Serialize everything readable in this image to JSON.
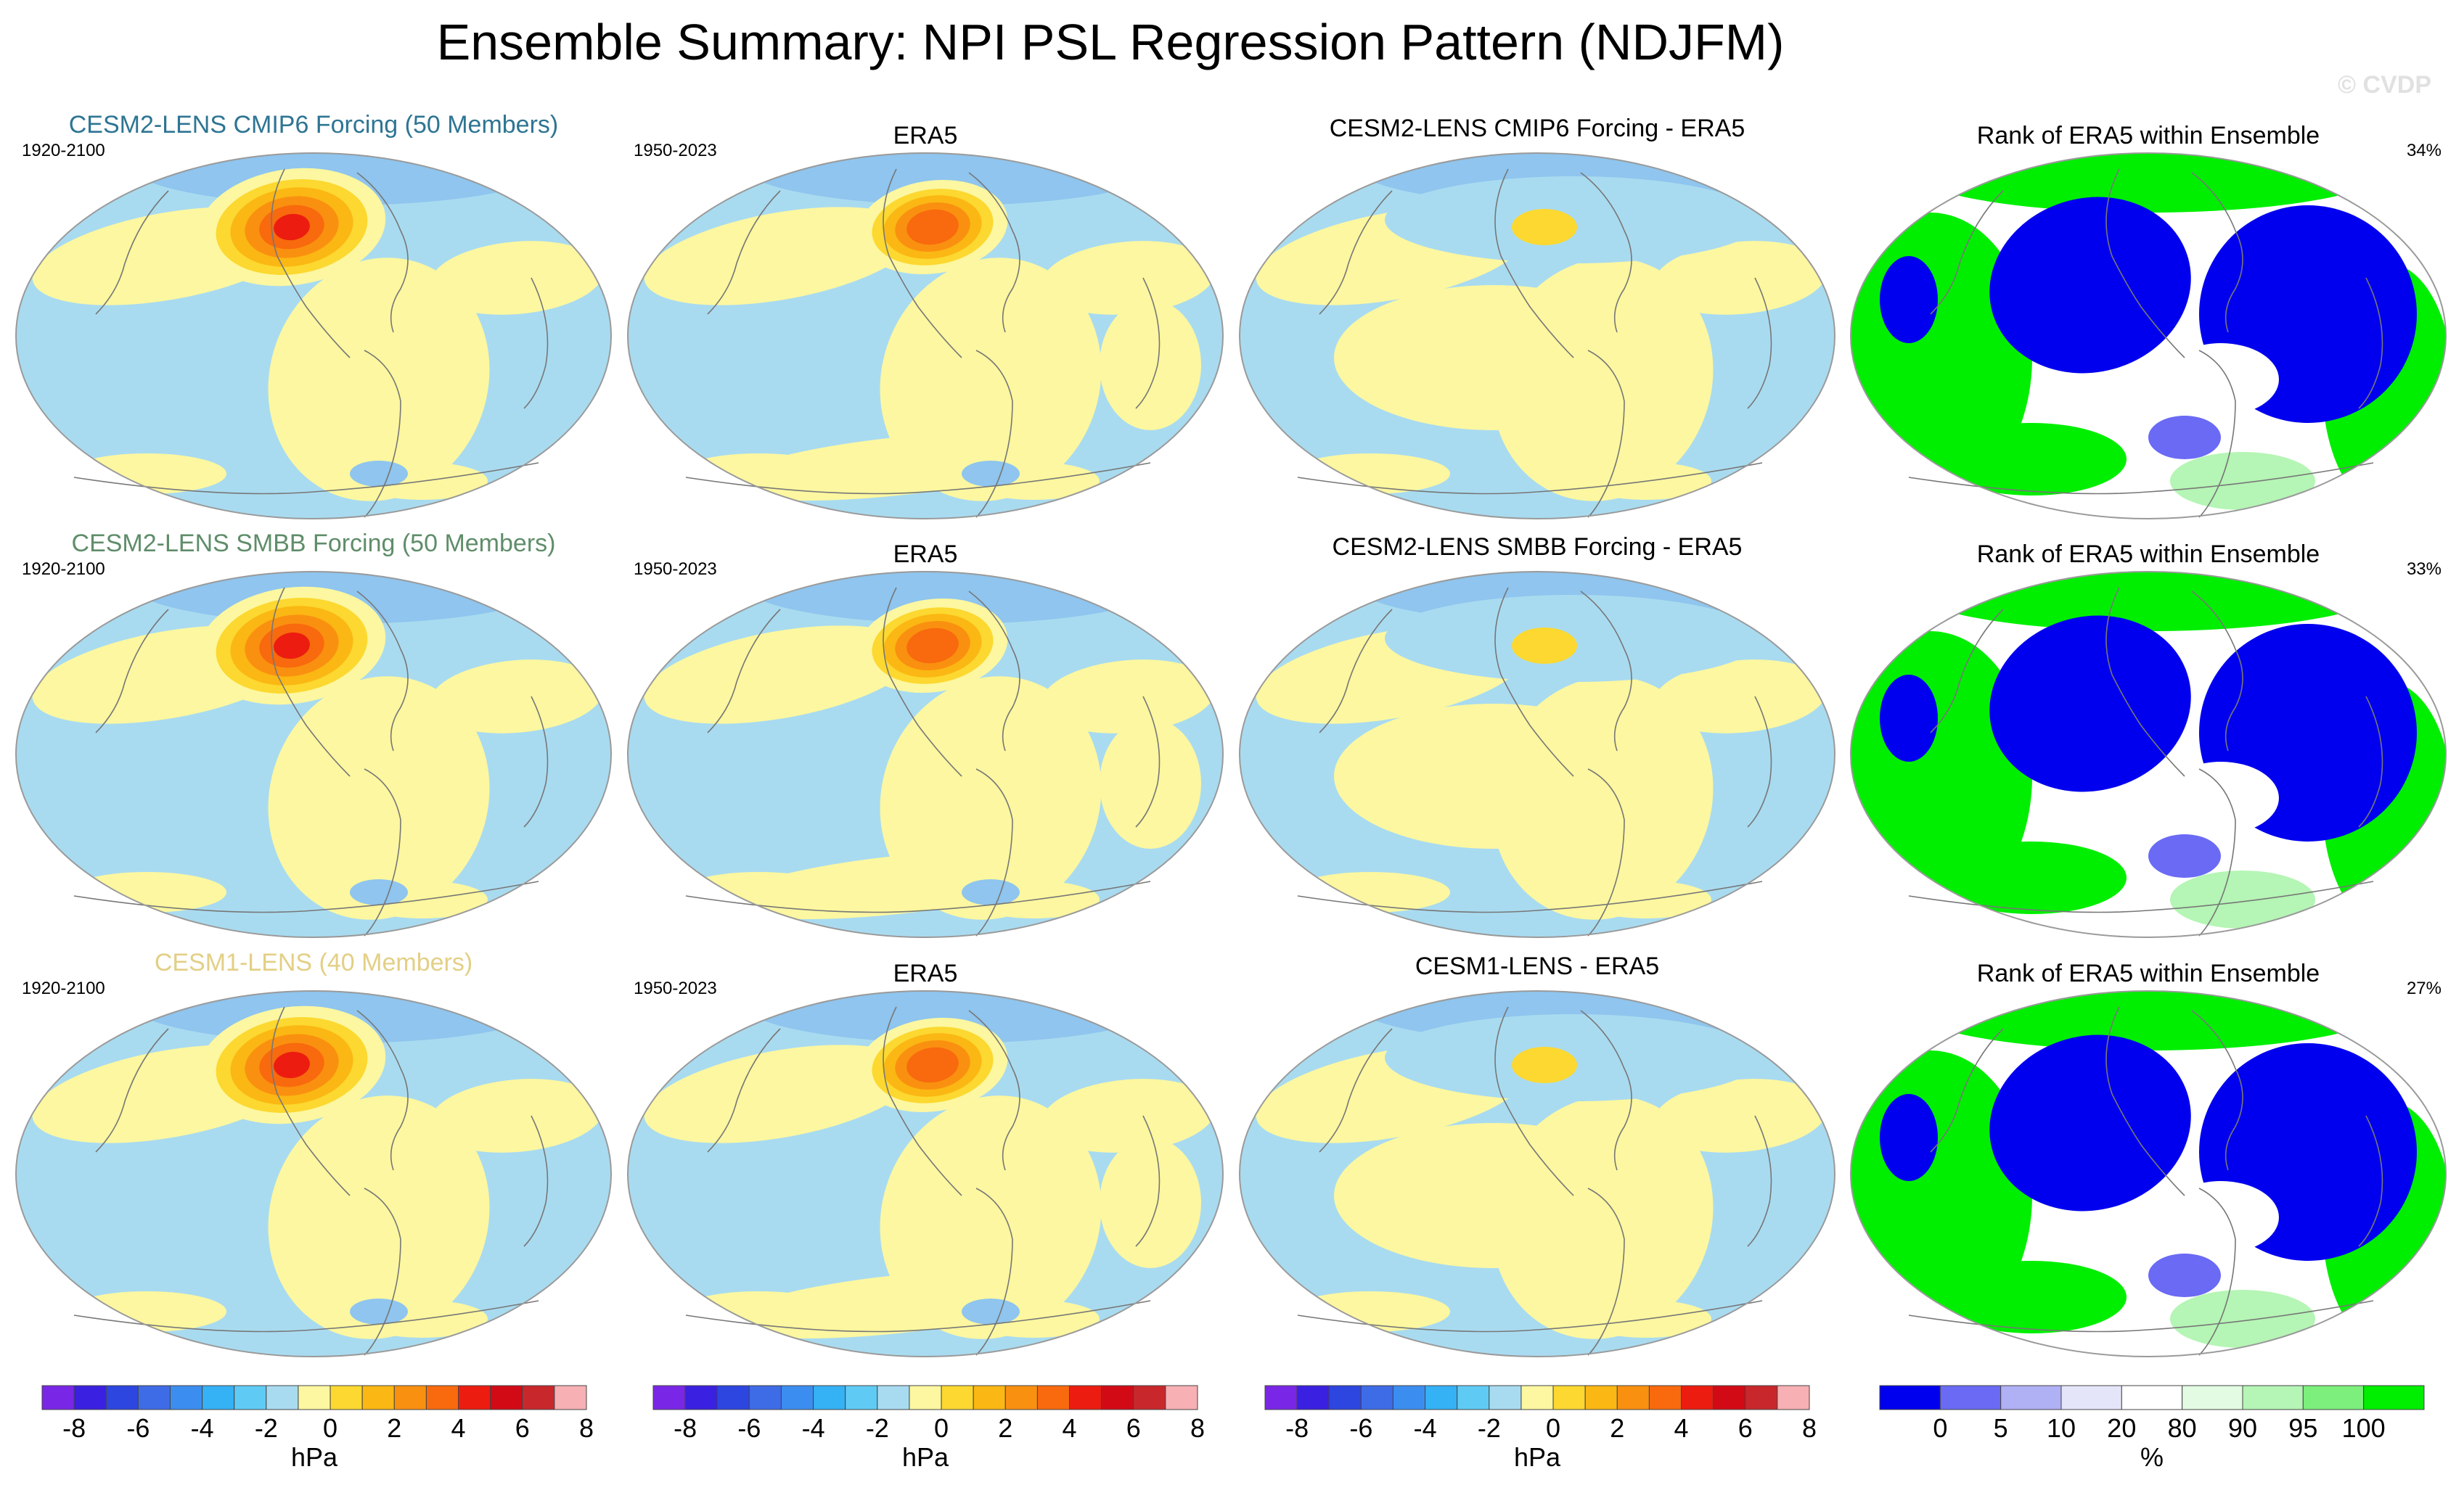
{
  "figure": {
    "title": "Ensemble Summary: NPI PSL Regression Pattern (NDJFM)",
    "watermark": "© CVDP"
  },
  "palettes": {
    "hPa": [
      "#7a26e6",
      "#3a20e0",
      "#2d46e0",
      "#3e6be6",
      "#3b8ef0",
      "#35b1f5",
      "#5fcbf5",
      "#a9dbf0",
      "#fcf7a0",
      "#fcd830",
      "#fbb713",
      "#fa9010",
      "#f86a0d",
      "#ec1c10",
      "#d20a16",
      "#c8282c",
      "#f7b0b4"
    ],
    "rank": [
      "#0000ee",
      "#6a6af5",
      "#b0b0f5",
      "#e5e5fa",
      "#ffffff",
      "#e2fbe2",
      "#b5f5b5",
      "#7cef7c",
      "#00ee00"
    ]
  },
  "rows": [
    {
      "ensemble_title": "CESM2-LENS CMIP6 Forcing (50 Members)",
      "ensemble_color": "#2e7593",
      "ensemble_years": "1920-2100",
      "obs_title": "ERA5",
      "obs_years": "1950-2023",
      "diff_title": "CESM2-LENS CMIP6 Forcing - ERA5",
      "rank_title": "Rank of ERA5 within Ensemble",
      "rank_pct": "34%"
    },
    {
      "ensemble_title": "CESM2-LENS SMBB Forcing (50 Members)",
      "ensemble_color": "#5f8d6a",
      "ensemble_years": "1920-2100",
      "obs_title": "ERA5",
      "obs_years": "1950-2023",
      "diff_title": "CESM2-LENS SMBB Forcing - ERA5",
      "rank_title": "Rank of ERA5 within Ensemble",
      "rank_pct": "33%"
    },
    {
      "ensemble_title": "CESM1-LENS (40 Members)",
      "ensemble_color": "#e3cf85",
      "ensemble_years": "1920-2100",
      "obs_title": "ERA5",
      "obs_years": "1950-2023",
      "diff_title": "CESM1-LENS - ERA5",
      "rank_title": "Rank of ERA5 within Ensemble",
      "rank_pct": "27%"
    }
  ],
  "chart_data": [
    {
      "type": "heatmap",
      "title": "Ensemble Summary: NPI PSL Regression Pattern (NDJFM)",
      "variable": "PSL regression onto NPI",
      "panels": [
        "CESM2-LENS CMIP6 Forcing (50 Members)",
        "ERA5",
        "CESM2-LENS CMIP6 Forcing - ERA5",
        "Rank of ERA5 within Ensemble",
        "CESM2-LENS SMBB Forcing (50 Members)",
        "ERA5",
        "CESM2-LENS SMBB Forcing - ERA5",
        "Rank of ERA5 within Ensemble",
        "CESM1-LENS (40 Members)",
        "ERA5",
        "CESM1-LENS - ERA5",
        "Rank of ERA5 within Ensemble"
      ]
    },
    {
      "type": "colorbar",
      "units": "hPa",
      "tick_labels": [
        "-8",
        "-6",
        "-4",
        "-2",
        "0",
        "2",
        "4",
        "6",
        "8"
      ],
      "levels": [
        -8,
        -6,
        -4,
        -2,
        0,
        2,
        4,
        6,
        8
      ]
    },
    {
      "type": "colorbar",
      "units": "%",
      "tick_labels": [
        "0",
        "5",
        "10",
        "20",
        "80",
        "90",
        "95",
        "100"
      ],
      "levels": [
        0,
        5,
        10,
        20,
        80,
        90,
        95,
        100
      ]
    }
  ]
}
